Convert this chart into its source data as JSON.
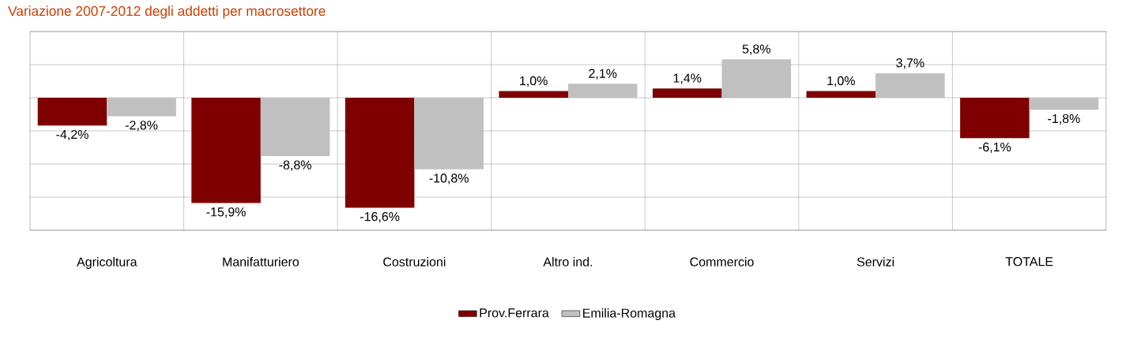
{
  "chart_data": {
    "type": "bar",
    "title": "Variazione 2007-2012 degli addetti per macrosettore",
    "categories": [
      "Agricoltura",
      "Manifatturiero",
      "Costruzioni",
      "Altro ind.",
      "Commercio",
      "Servizi",
      "TOTALE"
    ],
    "series": [
      {
        "name": "Prov.Ferrara",
        "color": "#7f0000",
        "values": [
          -4.2,
          -15.9,
          -16.6,
          1.0,
          1.4,
          1.0,
          -6.1
        ],
        "value_labels": [
          "-4,2%",
          "-15,9%",
          "-16,6%",
          "1,0%",
          "1,4%",
          "1,0%",
          "-6,1%"
        ]
      },
      {
        "name": "Emilia-Romagna",
        "color": "#c0c0c0",
        "values": [
          -2.8,
          -8.8,
          -10.8,
          2.1,
          5.8,
          3.7,
          -1.8
        ],
        "value_labels": [
          "-2,8%",
          "-8,8%",
          "-10,8%",
          "2,1%",
          "5,8%",
          "3,7%",
          "-1,8%"
        ]
      }
    ],
    "ylim": [
      -20,
      10
    ],
    "yticks": [
      {
        "value": -20,
        "label": null
      },
      {
        "value": -15,
        "label": null
      },
      {
        "value": -10,
        "label": null
      },
      {
        "value": -5,
        "label": null
      },
      {
        "value": 0,
        "label": null
      },
      {
        "value": 5,
        "label": null
      },
      {
        "value": 10,
        "label": null
      }
    ],
    "tick_labels": "x",
    "grid": true,
    "legend": "bottom"
  }
}
